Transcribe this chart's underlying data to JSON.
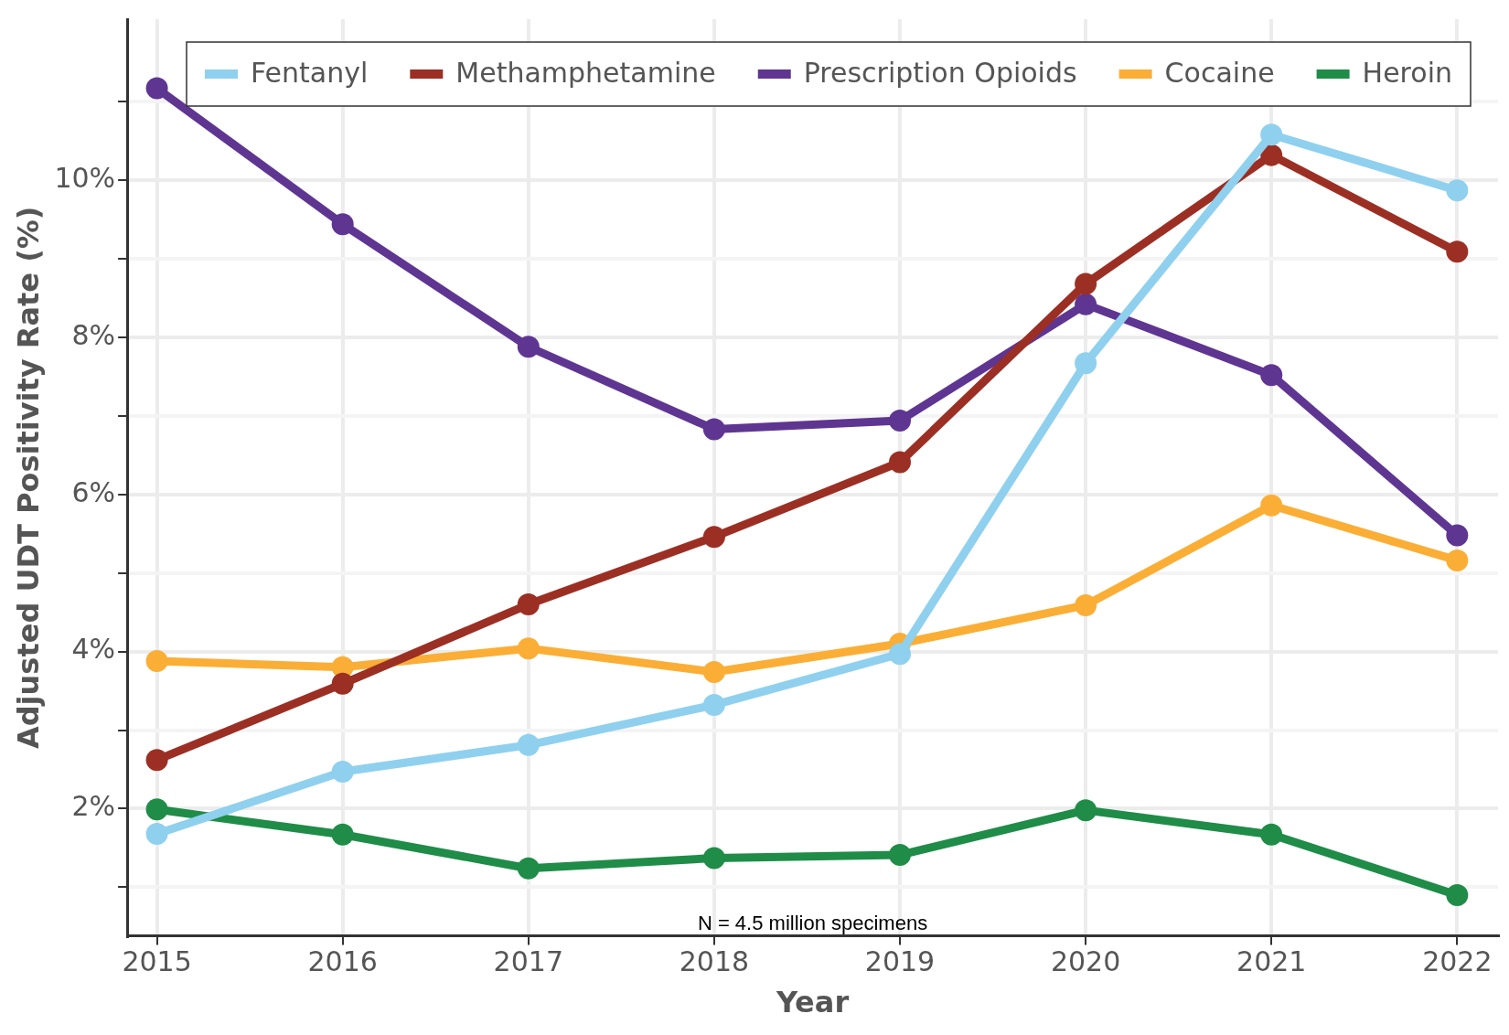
{
  "chart_data": {
    "type": "line",
    "xlabel": "Year",
    "ylabel": "Adjusted UDT Positivity Rate (%)",
    "x": [
      2015,
      2016,
      2017,
      2018,
      2019,
      2020,
      2021,
      2022
    ],
    "series": [
      {
        "name": "Fentanyl",
        "color": "#8fd0ee",
        "values": [
          1.68,
          2.47,
          2.81,
          3.32,
          3.97,
          7.67,
          10.58,
          9.87
        ]
      },
      {
        "name": "Methamphetamine",
        "color": "#9c2f24",
        "values": [
          2.62,
          3.59,
          4.6,
          5.46,
          6.41,
          8.68,
          10.32,
          9.09
        ]
      },
      {
        "name": "Prescription Opioids",
        "color": "#5f3592",
        "values": [
          11.17,
          9.44,
          7.88,
          6.83,
          6.94,
          8.42,
          7.52,
          5.48
        ]
      },
      {
        "name": "Cocaine",
        "color": "#fbae35",
        "values": [
          3.88,
          3.8,
          4.04,
          3.74,
          4.1,
          4.59,
          5.86,
          5.16
        ]
      },
      {
        "name": "Heroin",
        "color": "#1f8c48",
        "values": [
          1.99,
          1.67,
          1.24,
          1.37,
          1.41,
          1.98,
          1.67,
          0.9
        ]
      }
    ],
    "xlim": [
      2014.84,
      2022.22
    ],
    "xticks": [
      2015,
      2016,
      2017,
      2018,
      2019,
      2020,
      2021,
      2022
    ],
    "ylim": [
      0.38,
      12.05
    ],
    "yticks": [
      {
        "value": 1,
        "label": null
      },
      {
        "value": 2,
        "label": "2%"
      },
      {
        "value": 3,
        "label": null
      },
      {
        "value": 4,
        "label": "4%"
      },
      {
        "value": 5,
        "label": null
      },
      {
        "value": 6,
        "label": "6%"
      },
      {
        "value": 7,
        "label": null
      },
      {
        "value": 8,
        "label": "8%"
      },
      {
        "value": 9,
        "label": null
      },
      {
        "value": 10,
        "label": "10%"
      },
      {
        "value": 11,
        "label": null
      }
    ],
    "annotations": [
      "N = 4.5 million specimens"
    ],
    "grid": true,
    "legend": "top right",
    "marker": "circle",
    "line_style": "solid"
  }
}
